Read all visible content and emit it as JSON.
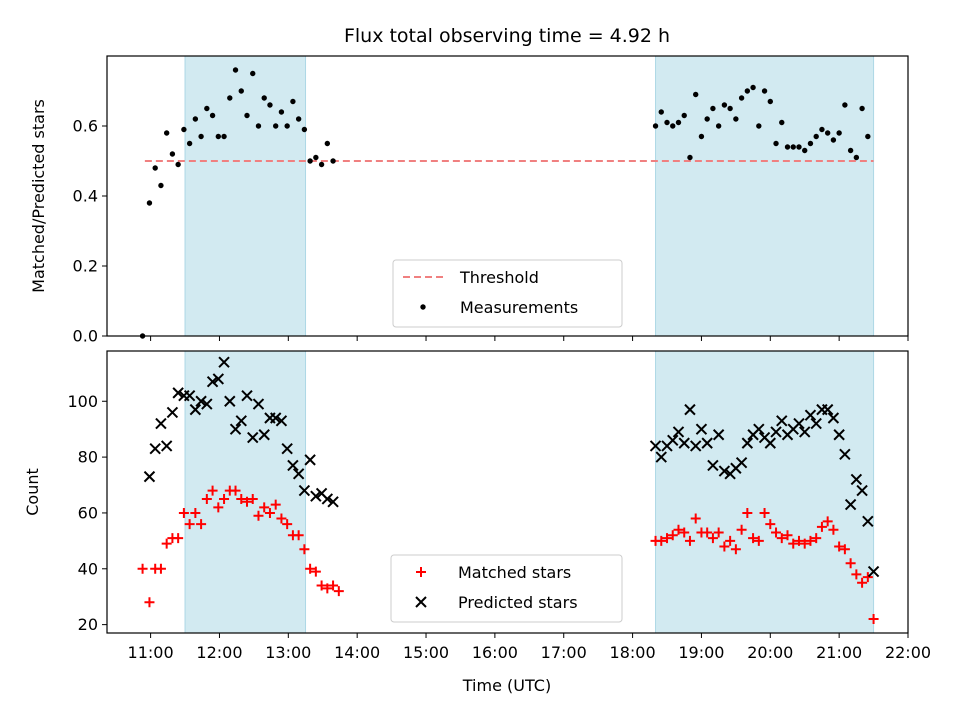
{
  "chart_data": {
    "type": "scatter",
    "title": "Flux total observing time = 4.92 h",
    "xlabel": "Time (UTC)",
    "x_ticks": [
      "11:00",
      "12:00",
      "13:00",
      "14:00",
      "15:00",
      "16:00",
      "17:00",
      "18:00",
      "19:00",
      "20:00",
      "21:00",
      "22:00"
    ],
    "xlim": [
      "10:22",
      "22:00"
    ],
    "observing_windows": [
      [
        "11:30",
        "13:15"
      ],
      [
        "18:20",
        "21:30"
      ]
    ],
    "window_color": "#add8e6",
    "panels": [
      {
        "ylabel": "Matched/Predicted stars",
        "ylim": [
          0,
          0.8
        ],
        "y_ticks": [
          "0.0",
          "0.2",
          "0.4",
          "0.6"
        ],
        "threshold": {
          "name": "Threshold",
          "value": 0.5,
          "x_range": [
            "10:55",
            "21:30"
          ],
          "color": "#f08080"
        },
        "series": [
          {
            "name": "Measurements",
            "color": "#000000",
            "marker": "dot",
            "points": [
              [
                "10:53",
                0.0
              ],
              [
                "10:59",
                0.38
              ],
              [
                "11:04",
                0.48
              ],
              [
                "11:09",
                0.43
              ],
              [
                "11:14",
                0.58
              ],
              [
                "11:19",
                0.52
              ],
              [
                "11:24",
                0.49
              ],
              [
                "11:29",
                0.59
              ],
              [
                "11:34",
                0.55
              ],
              [
                "11:39",
                0.62
              ],
              [
                "11:44",
                0.57
              ],
              [
                "11:49",
                0.65
              ],
              [
                "11:54",
                0.63
              ],
              [
                "11:59",
                0.57
              ],
              [
                "12:04",
                0.57
              ],
              [
                "12:09",
                0.68
              ],
              [
                "12:14",
                0.76
              ],
              [
                "12:19",
                0.7
              ],
              [
                "12:24",
                0.63
              ],
              [
                "12:29",
                0.75
              ],
              [
                "12:34",
                0.6
              ],
              [
                "12:39",
                0.68
              ],
              [
                "12:44",
                0.66
              ],
              [
                "12:49",
                0.6
              ],
              [
                "12:54",
                0.64
              ],
              [
                "12:59",
                0.6
              ],
              [
                "13:04",
                0.67
              ],
              [
                "13:09",
                0.62
              ],
              [
                "13:14",
                0.59
              ],
              [
                "13:19",
                0.5
              ],
              [
                "13:24",
                0.51
              ],
              [
                "13:29",
                0.49
              ],
              [
                "13:34",
                0.55
              ],
              [
                "13:39",
                0.5
              ],
              [
                "18:20",
                0.6
              ],
              [
                "18:25",
                0.64
              ],
              [
                "18:30",
                0.61
              ],
              [
                "18:35",
                0.6
              ],
              [
                "18:40",
                0.61
              ],
              [
                "18:45",
                0.63
              ],
              [
                "18:50",
                0.51
              ],
              [
                "18:55",
                0.69
              ],
              [
                "19:00",
                0.57
              ],
              [
                "19:05",
                0.62
              ],
              [
                "19:10",
                0.65
              ],
              [
                "19:15",
                0.6
              ],
              [
                "19:20",
                0.66
              ],
              [
                "19:25",
                0.65
              ],
              [
                "19:30",
                0.62
              ],
              [
                "19:35",
                0.68
              ],
              [
                "19:40",
                0.7
              ],
              [
                "19:45",
                0.71
              ],
              [
                "19:50",
                0.6
              ],
              [
                "19:55",
                0.7
              ],
              [
                "20:00",
                0.67
              ],
              [
                "20:05",
                0.55
              ],
              [
                "20:10",
                0.61
              ],
              [
                "20:15",
                0.54
              ],
              [
                "20:20",
                0.54
              ],
              [
                "20:25",
                0.54
              ],
              [
                "20:30",
                0.53
              ],
              [
                "20:35",
                0.55
              ],
              [
                "20:40",
                0.57
              ],
              [
                "20:45",
                0.59
              ],
              [
                "20:50",
                0.58
              ],
              [
                "20:55",
                0.56
              ],
              [
                "21:00",
                0.58
              ],
              [
                "21:05",
                0.66
              ],
              [
                "21:10",
                0.53
              ],
              [
                "21:15",
                0.51
              ],
              [
                "21:20",
                0.65
              ],
              [
                "21:25",
                0.57
              ]
            ]
          }
        ],
        "legend": {
          "position": "lower center",
          "entries": [
            "Threshold",
            "Measurements"
          ]
        }
      },
      {
        "ylabel": "Count",
        "ylim": [
          17,
          118
        ],
        "y_ticks": [
          "20",
          "40",
          "60",
          "80",
          "100"
        ],
        "series": [
          {
            "name": "Matched stars",
            "color": "#ff0000",
            "marker": "plus",
            "points": [
              [
                "10:53",
                40
              ],
              [
                "10:59",
                28
              ],
              [
                "11:04",
                40
              ],
              [
                "11:09",
                40
              ],
              [
                "11:14",
                49
              ],
              [
                "11:19",
                51
              ],
              [
                "11:24",
                51
              ],
              [
                "11:29",
                60
              ],
              [
                "11:34",
                56
              ],
              [
                "11:39",
                60
              ],
              [
                "11:44",
                56
              ],
              [
                "11:49",
                65
              ],
              [
                "11:54",
                68
              ],
              [
                "11:59",
                62
              ],
              [
                "12:04",
                65
              ],
              [
                "12:09",
                68
              ],
              [
                "12:14",
                68
              ],
              [
                "12:19",
                65
              ],
              [
                "12:24",
                64
              ],
              [
                "12:29",
                65
              ],
              [
                "12:34",
                59
              ],
              [
                "12:39",
                62
              ],
              [
                "12:44",
                60
              ],
              [
                "12:49",
                63
              ],
              [
                "12:54",
                58
              ],
              [
                "12:59",
                56
              ],
              [
                "13:04",
                52
              ],
              [
                "13:09",
                52
              ],
              [
                "13:14",
                47
              ],
              [
                "13:19",
                40
              ],
              [
                "13:24",
                39
              ],
              [
                "13:29",
                34
              ],
              [
                "13:34",
                33
              ],
              [
                "13:39",
                34
              ],
              [
                "13:44",
                32
              ],
              [
                "18:20",
                50
              ],
              [
                "18:25",
                50
              ],
              [
                "18:30",
                51
              ],
              [
                "18:35",
                52
              ],
              [
                "18:40",
                54
              ],
              [
                "18:45",
                53
              ],
              [
                "18:50",
                50
              ],
              [
                "18:55",
                58
              ],
              [
                "19:00",
                53
              ],
              [
                "19:05",
                53
              ],
              [
                "19:10",
                51
              ],
              [
                "19:15",
                53
              ],
              [
                "19:20",
                48
              ],
              [
                "19:25",
                50
              ],
              [
                "19:30",
                47
              ],
              [
                "19:35",
                54
              ],
              [
                "19:40",
                60
              ],
              [
                "19:45",
                51
              ],
              [
                "19:50",
                50
              ],
              [
                "19:55",
                60
              ],
              [
                "20:00",
                56
              ],
              [
                "20:05",
                53
              ],
              [
                "20:10",
                51
              ],
              [
                "20:15",
                52
              ],
              [
                "20:20",
                49
              ],
              [
                "20:25",
                50
              ],
              [
                "20:30",
                49
              ],
              [
                "20:35",
                50
              ],
              [
                "20:40",
                51
              ],
              [
                "20:45",
                55
              ],
              [
                "20:50",
                57
              ],
              [
                "20:55",
                54
              ],
              [
                "21:00",
                48
              ],
              [
                "21:05",
                47
              ],
              [
                "21:10",
                42
              ],
              [
                "21:15",
                38
              ],
              [
                "21:20",
                35
              ],
              [
                "21:25",
                37
              ],
              [
                "21:30",
                22
              ]
            ]
          },
          {
            "name": "Predicted stars",
            "color": "#000000",
            "marker": "x",
            "points": [
              [
                "10:59",
                73
              ],
              [
                "11:04",
                83
              ],
              [
                "11:09",
                92
              ],
              [
                "11:14",
                84
              ],
              [
                "11:19",
                96
              ],
              [
                "11:24",
                103
              ],
              [
                "11:29",
                102
              ],
              [
                "11:34",
                102
              ],
              [
                "11:39",
                97
              ],
              [
                "11:44",
                100
              ],
              [
                "11:49",
                99
              ],
              [
                "11:54",
                107
              ],
              [
                "11:59",
                108
              ],
              [
                "12:04",
                114
              ],
              [
                "12:09",
                100
              ],
              [
                "12:14",
                90
              ],
              [
                "12:19",
                93
              ],
              [
                "12:24",
                102
              ],
              [
                "12:29",
                87
              ],
              [
                "12:34",
                99
              ],
              [
                "12:39",
                88
              ],
              [
                "12:44",
                94
              ],
              [
                "12:49",
                94
              ],
              [
                "12:54",
                93
              ],
              [
                "12:59",
                83
              ],
              [
                "13:04",
                77
              ],
              [
                "13:09",
                74
              ],
              [
                "13:14",
                68
              ],
              [
                "13:19",
                79
              ],
              [
                "13:24",
                66
              ],
              [
                "13:29",
                67
              ],
              [
                "13:34",
                65
              ],
              [
                "13:39",
                64
              ],
              [
                "18:20",
                84
              ],
              [
                "18:25",
                80
              ],
              [
                "18:30",
                84
              ],
              [
                "18:35",
                86
              ],
              [
                "18:40",
                89
              ],
              [
                "18:45",
                85
              ],
              [
                "18:50",
                97
              ],
              [
                "18:55",
                84
              ],
              [
                "19:00",
                90
              ],
              [
                "19:05",
                85
              ],
              [
                "19:10",
                77
              ],
              [
                "19:15",
                88
              ],
              [
                "19:20",
                75
              ],
              [
                "19:25",
                74
              ],
              [
                "19:30",
                76
              ],
              [
                "19:35",
                78
              ],
              [
                "19:40",
                85
              ],
              [
                "19:45",
                88
              ],
              [
                "19:50",
                90
              ],
              [
                "19:55",
                87
              ],
              [
                "20:00",
                85
              ],
              [
                "20:05",
                89
              ],
              [
                "20:10",
                93
              ],
              [
                "20:15",
                88
              ],
              [
                "20:20",
                90
              ],
              [
                "20:25",
                92
              ],
              [
                "20:30",
                89
              ],
              [
                "20:35",
                95
              ],
              [
                "20:40",
                92
              ],
              [
                "20:45",
                97
              ],
              [
                "20:50",
                97
              ],
              [
                "20:55",
                94
              ],
              [
                "21:00",
                88
              ],
              [
                "21:05",
                81
              ],
              [
                "21:10",
                63
              ],
              [
                "21:15",
                72
              ],
              [
                "21:20",
                68
              ],
              [
                "21:25",
                57
              ],
              [
                "21:30",
                39
              ]
            ]
          }
        ],
        "legend": {
          "position": "lower center",
          "entries": [
            "Matched stars",
            "Predicted stars"
          ]
        }
      }
    ]
  }
}
